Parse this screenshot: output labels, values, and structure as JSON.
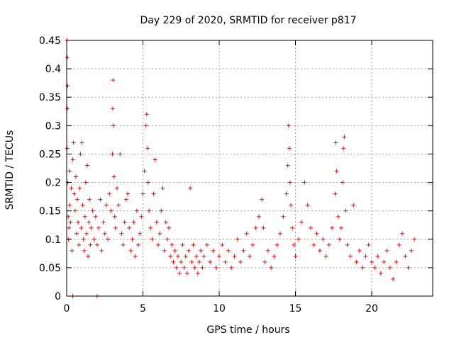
{
  "chart_data": {
    "type": "scatter",
    "title": "Day 229 of 2020, SRMTID for receiver p817",
    "xlabel": "GPS time / hours",
    "ylabel": "SRMTID / TECUs",
    "xlim": [
      0,
      24
    ],
    "ylim": [
      0,
      0.45
    ],
    "xticks": [
      0,
      5,
      10,
      15,
      20
    ],
    "xtick_labels": [
      "0",
      "5",
      "10",
      "15",
      "20"
    ],
    "yticks": [
      0,
      0.05,
      0.1,
      0.15,
      0.2,
      0.25,
      0.3,
      0.35,
      0.4,
      0.45
    ],
    "ytick_labels": [
      "0",
      "0.05",
      "0.1",
      "0.15",
      "0.2",
      "0.25",
      "0.3",
      "0.35",
      "0.4",
      "0.45"
    ],
    "grid": true,
    "marker": "+",
    "series": [
      {
        "name": "SRMTID",
        "color": "#ff0000",
        "points": [
          [
            0.02,
            0.45
          ],
          [
            0.04,
            0.42
          ],
          [
            0.06,
            0.37
          ],
          [
            0.05,
            0.33
          ],
          [
            0.03,
            0.26
          ],
          [
            0.08,
            0.2
          ],
          [
            0.1,
            0.14
          ],
          [
            0.12,
            0.1
          ],
          [
            0.15,
            0.12
          ],
          [
            0.18,
            0.22
          ],
          [
            0.2,
            0.16
          ],
          [
            0.25,
            0.13
          ],
          [
            0.3,
            0.19
          ],
          [
            0.35,
            0.08
          ],
          [
            0.4,
            0.24
          ],
          [
            0.45,
            0.27
          ],
          [
            0.5,
            0.18
          ],
          [
            0.55,
            0.15
          ],
          [
            0.6,
            0.21
          ],
          [
            0.65,
            0.11
          ],
          [
            0.7,
            0.17
          ],
          [
            0.75,
            0.13
          ],
          [
            0.8,
            0.09
          ],
          [
            0.85,
            0.19
          ],
          [
            0.9,
            0.25
          ],
          [
            0.95,
            0.12
          ],
          [
            1.0,
            0.27
          ],
          [
            1.05,
            0.16
          ],
          [
            1.1,
            0.1
          ],
          [
            1.15,
            0.08
          ],
          [
            1.2,
            0.14
          ],
          [
            1.25,
            0.2
          ],
          [
            1.3,
            0.11
          ],
          [
            1.35,
            0.23
          ],
          [
            1.4,
            0.07
          ],
          [
            1.45,
            0.13
          ],
          [
            1.5,
            0.17
          ],
          [
            1.55,
            0.09
          ],
          [
            1.6,
            0.12
          ],
          [
            1.7,
            0.15
          ],
          [
            1.8,
            0.1
          ],
          [
            1.9,
            0.14
          ],
          [
            2.0,
            0.09
          ],
          [
            2.1,
            0.12
          ],
          [
            2.2,
            0.17
          ],
          [
            2.3,
            0.08
          ],
          [
            2.4,
            0.13
          ],
          [
            2.5,
            0.11
          ],
          [
            2.6,
            0.16
          ],
          [
            2.7,
            0.1
          ],
          [
            2.8,
            0.18
          ],
          [
            2.9,
            0.15
          ],
          [
            3.0,
            0.25
          ],
          [
            3.02,
            0.33
          ],
          [
            3.04,
            0.38
          ],
          [
            3.06,
            0.3
          ],
          [
            3.1,
            0.21
          ],
          [
            3.15,
            0.14
          ],
          [
            3.2,
            0.12
          ],
          [
            3.3,
            0.19
          ],
          [
            3.4,
            0.16
          ],
          [
            3.5,
            0.25
          ],
          [
            3.6,
            0.11
          ],
          [
            3.7,
            0.09
          ],
          [
            3.8,
            0.13
          ],
          [
            3.9,
            0.17
          ],
          [
            4.0,
            0.18
          ],
          [
            4.1,
            0.12
          ],
          [
            4.2,
            0.08
          ],
          [
            4.3,
            0.1
          ],
          [
            4.4,
            0.13
          ],
          [
            4.5,
            0.07
          ],
          [
            4.6,
            0.15
          ],
          [
            4.7,
            0.09
          ],
          [
            4.8,
            0.11
          ],
          [
            4.9,
            0.14
          ],
          [
            5.0,
            0.18
          ],
          [
            5.1,
            0.22
          ],
          [
            5.2,
            0.3
          ],
          [
            5.25,
            0.32
          ],
          [
            5.3,
            0.26
          ],
          [
            5.35,
            0.2
          ],
          [
            5.4,
            0.15
          ],
          [
            5.5,
            0.12
          ],
          [
            5.6,
            0.1
          ],
          [
            5.7,
            0.18
          ],
          [
            5.8,
            0.24
          ],
          [
            5.9,
            0.13
          ],
          [
            6.0,
            0.09
          ],
          [
            6.1,
            0.11
          ],
          [
            6.2,
            0.15
          ],
          [
            6.3,
            0.19
          ],
          [
            6.4,
            0.08
          ],
          [
            6.5,
            0.13
          ],
          [
            6.6,
            0.1
          ],
          [
            6.7,
            0.12
          ],
          [
            6.8,
            0.07
          ],
          [
            6.9,
            0.09
          ],
          [
            7.0,
            0.06
          ],
          [
            7.1,
            0.08
          ],
          [
            7.2,
            0.05
          ],
          [
            7.3,
            0.07
          ],
          [
            7.4,
            0.04
          ],
          [
            7.5,
            0.06
          ],
          [
            7.6,
            0.09
          ],
          [
            7.7,
            0.05
          ],
          [
            7.8,
            0.07
          ],
          [
            7.9,
            0.04
          ],
          [
            8.0,
            0.08
          ],
          [
            8.1,
            0.19
          ],
          [
            8.2,
            0.06
          ],
          [
            8.3,
            0.09
          ],
          [
            8.4,
            0.05
          ],
          [
            8.5,
            0.07
          ],
          [
            8.6,
            0.04
          ],
          [
            8.7,
            0.06
          ],
          [
            8.8,
            0.08
          ],
          [
            8.9,
            0.05
          ],
          [
            9.0,
            0.07
          ],
          [
            9.2,
            0.09
          ],
          [
            9.4,
            0.06
          ],
          [
            9.6,
            0.08
          ],
          [
            9.8,
            0.05
          ],
          [
            10.0,
            0.07
          ],
          [
            10.2,
            0.09
          ],
          [
            10.4,
            0.06
          ],
          [
            10.6,
            0.08
          ],
          [
            10.8,
            0.05
          ],
          [
            11.0,
            0.07
          ],
          [
            11.2,
            0.1
          ],
          [
            11.4,
            0.06
          ],
          [
            11.6,
            0.08
          ],
          [
            11.8,
            0.11
          ],
          [
            12.0,
            0.07
          ],
          [
            12.2,
            0.09
          ],
          [
            12.4,
            0.12
          ],
          [
            12.6,
            0.14
          ],
          [
            12.8,
            0.17
          ],
          [
            12.9,
            0.12
          ],
          [
            13.0,
            0.06
          ],
          [
            13.2,
            0.08
          ],
          [
            13.4,
            0.05
          ],
          [
            13.6,
            0.07
          ],
          [
            13.8,
            0.09
          ],
          [
            14.0,
            0.11
          ],
          [
            14.2,
            0.14
          ],
          [
            14.4,
            0.18
          ],
          [
            14.5,
            0.23
          ],
          [
            14.55,
            0.3
          ],
          [
            14.6,
            0.26
          ],
          [
            14.65,
            0.2
          ],
          [
            14.7,
            0.16
          ],
          [
            14.8,
            0.12
          ],
          [
            14.9,
            0.09
          ],
          [
            15.0,
            0.07
          ],
          [
            15.2,
            0.1
          ],
          [
            15.4,
            0.13
          ],
          [
            15.6,
            0.2
          ],
          [
            15.8,
            0.16
          ],
          [
            16.0,
            0.12
          ],
          [
            16.2,
            0.09
          ],
          [
            16.4,
            0.11
          ],
          [
            16.6,
            0.08
          ],
          [
            16.8,
            0.1
          ],
          [
            17.0,
            0.07
          ],
          [
            17.2,
            0.09
          ],
          [
            17.4,
            0.12
          ],
          [
            17.6,
            0.18
          ],
          [
            17.65,
            0.27
          ],
          [
            17.7,
            0.22
          ],
          [
            17.8,
            0.14
          ],
          [
            17.9,
            0.1
          ],
          [
            18.0,
            0.12
          ],
          [
            18.1,
            0.2
          ],
          [
            18.15,
            0.26
          ],
          [
            18.2,
            0.28
          ],
          [
            18.3,
            0.15
          ],
          [
            18.4,
            0.09
          ],
          [
            18.6,
            0.07
          ],
          [
            18.8,
            0.16
          ],
          [
            19.0,
            0.06
          ],
          [
            19.2,
            0.08
          ],
          [
            19.4,
            0.05
          ],
          [
            19.6,
            0.07
          ],
          [
            19.8,
            0.09
          ],
          [
            20.0,
            0.06
          ],
          [
            20.2,
            0.05
          ],
          [
            20.4,
            0.07
          ],
          [
            20.6,
            0.04
          ],
          [
            20.8,
            0.06
          ],
          [
            21.0,
            0.08
          ],
          [
            21.2,
            0.05
          ],
          [
            21.4,
            0.03
          ],
          [
            21.6,
            0.06
          ],
          [
            21.8,
            0.09
          ],
          [
            22.0,
            0.11
          ],
          [
            22.2,
            0.07
          ],
          [
            22.4,
            0.05
          ],
          [
            22.6,
            0.08
          ],
          [
            22.8,
            0.1
          ],
          [
            0.4,
            0.0
          ],
          [
            2.0,
            0.0
          ]
        ]
      }
    ]
  }
}
